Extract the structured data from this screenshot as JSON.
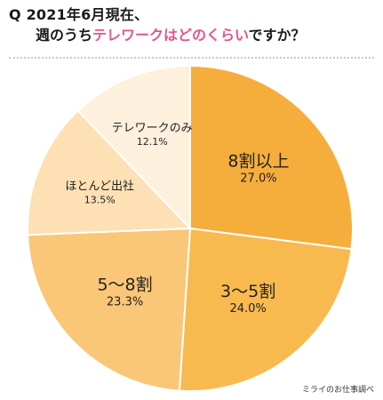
{
  "header": {
    "line1": "Q 2021年6月現在、",
    "line2_prefix": "週のうち",
    "line2_highlight": "テレワークはどのくらい",
    "line2_suffix": "ですか？"
  },
  "source": "ミライのお仕事調べ",
  "colors": {
    "accent": "#e4558b",
    "slices": [
      "#f5ad3c",
      "#f8b94f",
      "#fac677",
      "#fde0b4",
      "#fdf0dd"
    ]
  },
  "chart_data": {
    "type": "pie",
    "title": "",
    "slices": [
      {
        "label": "8割以上",
        "value": 27.0,
        "value_label": "27.0%"
      },
      {
        "label": "3〜5割",
        "value": 24.0,
        "value_label": "24.0%"
      },
      {
        "label": "5〜8割",
        "value": 23.3,
        "value_label": "23.3%"
      },
      {
        "label": "ほとんど出社",
        "value": 13.5,
        "value_label": "13.5%"
      },
      {
        "label": "テレワークのみ",
        "value": 12.1,
        "value_label": "12.1%"
      }
    ],
    "start": "12 o'clock",
    "direction": "clockwise",
    "legend": "none (labels inside slices)"
  }
}
